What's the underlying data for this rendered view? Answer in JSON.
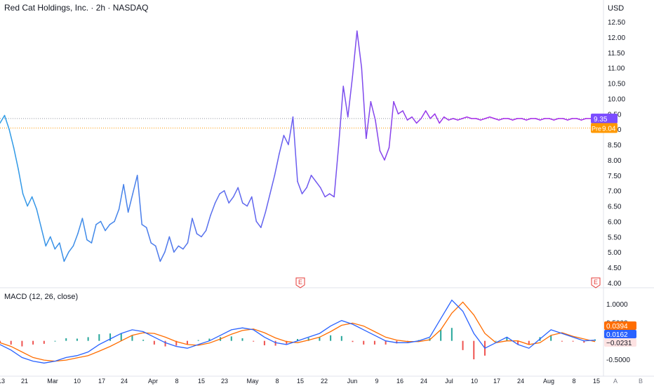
{
  "header": {
    "title": "Red Cat Holdings, Inc. · 2h · NASDAQ",
    "currency": "USD"
  },
  "colors": {
    "line_start": "#2e9de6",
    "line_mid": "#6a5cf0",
    "line_end": "#a62ae8",
    "last_price_bg": "#7c4dff",
    "pre_bg": "#ff9800",
    "macd_line": "#2962ff",
    "signal_line": "#ff6d00",
    "hist_pos": "#26a69a",
    "hist_neg": "#ef5350",
    "earnings_marker": "#e53935"
  },
  "price_axis_labels": [
    "12.50",
    "12.00",
    "11.50",
    "11.00",
    "10.50",
    "10.00",
    "9.50",
    "9.00",
    "8.50",
    "8.00",
    "7.50",
    "7.00",
    "6.50",
    "6.00",
    "5.50",
    "5.00",
    "4.50",
    "4.00"
  ],
  "price_tags": {
    "last": "9.35",
    "pre_label": "Pre",
    "pre_value": "9.04"
  },
  "earnings_markers": [
    "E",
    "E"
  ],
  "macd": {
    "title": "MACD (12, 26, close)",
    "axis_labels": [
      "1.0000",
      "0.5000",
      "-0.5000"
    ],
    "tags": {
      "hist": "0.0394",
      "macd": "0.0162",
      "signal": "−0.0231"
    }
  },
  "time_axis_labels": [
    "13",
    "21",
    "Mar",
    "10",
    "17",
    "24",
    "Apr",
    "8",
    "15",
    "23",
    "May",
    "8",
    "15",
    "22",
    "Jun",
    "9",
    "16",
    "24",
    "Jul",
    "10",
    "17",
    "24",
    "Aug",
    "8",
    "15"
  ],
  "corner_labels": [
    "A",
    "B"
  ],
  "chart_data": {
    "type": "line",
    "title": "Red Cat Holdings, Inc. · 2h · NASDAQ",
    "ylabel": "USD",
    "ylim": [
      4.0,
      12.5
    ],
    "x_ticks": [
      "13",
      "21",
      "Mar",
      "10",
      "17",
      "24",
      "Apr",
      "8",
      "15",
      "23",
      "May",
      "8",
      "15",
      "22",
      "Jun",
      "9",
      "16",
      "24",
      "Jul",
      "10",
      "17",
      "24",
      "Aug",
      "8",
      "15"
    ],
    "series": [
      {
        "x": [
          0,
          1,
          2,
          3,
          4,
          5,
          6,
          7,
          8,
          9,
          10,
          11,
          12,
          13,
          14,
          15,
          16,
          17,
          18,
          19,
          20,
          21,
          22,
          23,
          24,
          25,
          26,
          27,
          28,
          29,
          30,
          31,
          32,
          33,
          34,
          35,
          36,
          37,
          38,
          39,
          40,
          41,
          42,
          43,
          44,
          45,
          46,
          47,
          48,
          49,
          50,
          51,
          52,
          53,
          54,
          55,
          56,
          57,
          58,
          59,
          60,
          61,
          62,
          63,
          64,
          65,
          66,
          67,
          68,
          69,
          70,
          71,
          72,
          73,
          74,
          75,
          76,
          77,
          78,
          79,
          80,
          81,
          82,
          83,
          84,
          85,
          86,
          87,
          88,
          89,
          90,
          91,
          92,
          93,
          94,
          95,
          96,
          97,
          98,
          99,
          100,
          101,
          102,
          103,
          104,
          105,
          106,
          107,
          108,
          109,
          110,
          111,
          112,
          113,
          114,
          115,
          116,
          117,
          118,
          119,
          120,
          121,
          122,
          123,
          124,
          125,
          126,
          127,
          128,
          129,
          130
        ],
        "values": [
          9.2,
          9.45,
          9.0,
          8.4,
          7.7,
          6.9,
          6.5,
          6.8,
          6.4,
          5.8,
          5.2,
          5.5,
          5.1,
          5.3,
          4.7,
          5.0,
          5.2,
          5.6,
          6.1,
          5.4,
          5.3,
          5.9,
          6.0,
          5.7,
          5.9,
          6.0,
          6.4,
          7.2,
          6.3,
          6.9,
          7.5,
          5.9,
          5.8,
          5.3,
          5.2,
          4.7,
          5.0,
          5.5,
          5.0,
          5.2,
          5.1,
          5.3,
          6.1,
          5.6,
          5.5,
          5.7,
          6.2,
          6.6,
          6.9,
          7.0,
          6.6,
          6.8,
          7.1,
          6.6,
          6.5,
          6.8,
          6.0,
          5.8,
          6.3,
          6.9,
          7.5,
          8.2,
          8.8,
          8.5,
          9.4,
          7.3,
          6.9,
          7.1,
          7.5,
          7.3,
          7.1,
          6.8,
          6.9,
          6.8,
          8.5,
          10.4,
          9.4,
          10.7,
          12.2,
          11.0,
          8.7,
          9.9,
          9.3,
          8.3,
          8.0,
          8.4,
          9.9,
          9.5,
          9.6,
          9.3,
          9.4,
          9.2,
          9.35,
          9.6,
          9.35,
          9.5,
          9.2,
          9.4,
          9.3,
          9.35,
          9.3,
          9.35,
          9.4,
          9.35,
          9.35,
          9.3,
          9.35,
          9.4,
          9.35,
          9.3,
          9.35,
          9.35,
          9.3,
          9.35,
          9.35,
          9.3,
          9.35,
          9.35,
          9.3,
          9.35,
          9.35,
          9.3,
          9.35,
          9.35,
          9.3,
          9.35,
          9.35,
          9.3,
          9.35,
          9.35,
          9.35
        ]
      }
    ],
    "macd_panel": {
      "ylim": [
        -0.6,
        1.2
      ],
      "macd": [
        -0.1,
        -0.25,
        -0.45,
        -0.55,
        -0.6,
        -0.55,
        -0.45,
        -0.4,
        -0.3,
        -0.1,
        0.05,
        0.2,
        0.3,
        0.25,
        0.1,
        -0.05,
        -0.15,
        -0.2,
        -0.1,
        0.0,
        0.15,
        0.3,
        0.35,
        0.3,
        0.1,
        -0.05,
        -0.1,
        0.0,
        0.1,
        0.2,
        0.4,
        0.55,
        0.45,
        0.3,
        0.15,
        0.0,
        -0.05,
        -0.05,
        0.0,
        0.1,
        0.6,
        1.1,
        0.8,
        0.2,
        -0.2,
        -0.05,
        0.1,
        -0.1,
        -0.2,
        0.05,
        0.3,
        0.2,
        0.1,
        0.0,
        0.02
      ],
      "signal": [
        -0.05,
        -0.15,
        -0.3,
        -0.45,
        -0.52,
        -0.55,
        -0.52,
        -0.46,
        -0.4,
        -0.28,
        -0.15,
        0.0,
        0.15,
        0.22,
        0.2,
        0.1,
        -0.02,
        -0.1,
        -0.12,
        -0.06,
        0.05,
        0.18,
        0.28,
        0.32,
        0.22,
        0.08,
        -0.02,
        -0.05,
        0.02,
        0.1,
        0.25,
        0.42,
        0.48,
        0.4,
        0.25,
        0.1,
        0.02,
        -0.02,
        -0.02,
        0.03,
        0.3,
        0.75,
        1.05,
        0.7,
        0.2,
        -0.05,
        0.0,
        0.0,
        -0.1,
        -0.05,
        0.15,
        0.22,
        0.12,
        0.05,
        -0.02
      ]
    }
  }
}
